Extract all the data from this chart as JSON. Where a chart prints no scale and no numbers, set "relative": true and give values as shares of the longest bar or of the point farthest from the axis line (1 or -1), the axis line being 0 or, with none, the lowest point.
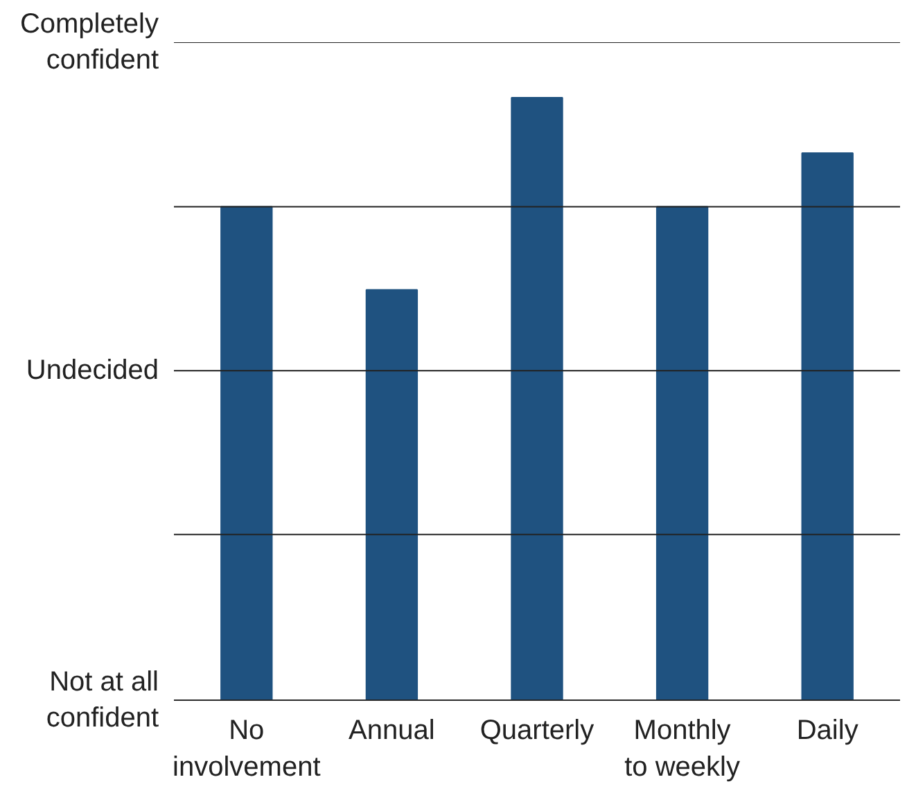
{
  "chart_data": {
    "type": "bar",
    "categories": [
      "No\ninvolvement",
      "Annual",
      "Quarterly",
      "Monthly\nto weekly",
      "Daily"
    ],
    "values": [
      0.819,
      0.681,
      1,
      0.819,
      0.908
    ],
    "relative": true,
    "color": "#1f5280",
    "ref_lines": [
      {
        "axis": "y",
        "value": 0,
        "label": "Not at all\nconfident"
      },
      {
        "axis": "y",
        "value": 0.275,
        "label": null
      },
      {
        "axis": "y",
        "value": 0.547,
        "label": "Undecided"
      },
      {
        "axis": "y",
        "value": 0.819,
        "label": null
      },
      {
        "axis": "y",
        "value": 1.092,
        "label": "Completely\nconfident"
      }
    ]
  }
}
